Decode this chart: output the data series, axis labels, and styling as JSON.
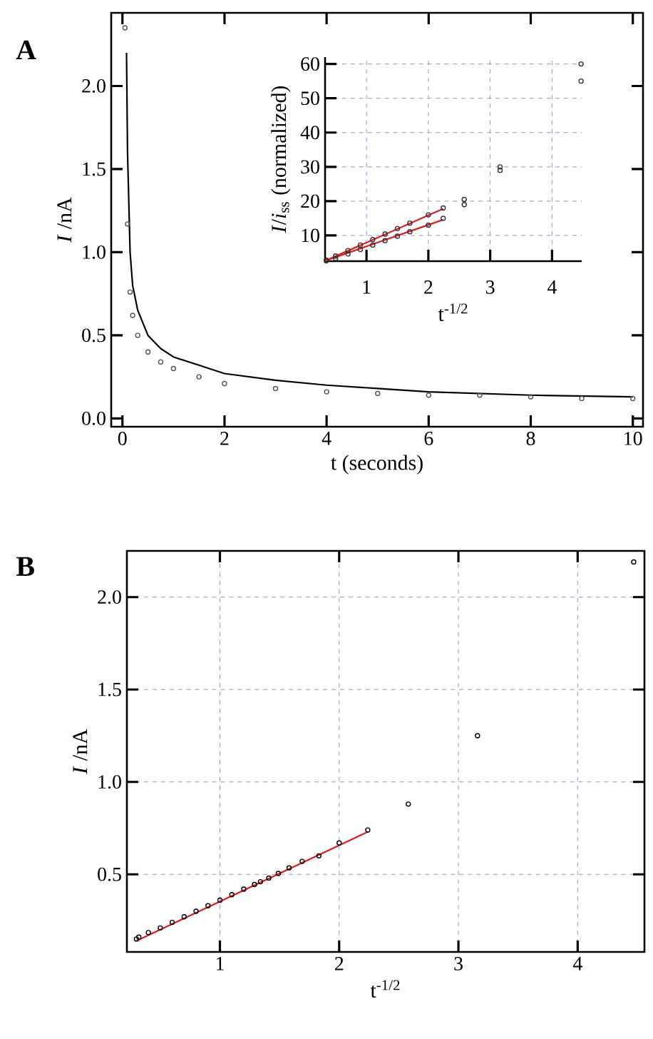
{
  "chart_data": [
    {
      "type": "scatter",
      "title": "A",
      "xlabel": "t (seconds)",
      "ylabel": "*I* /nA",
      "xlim": [
        -0.22,
        10.2
      ],
      "ylim": [
        -0.05,
        2.44
      ],
      "xticks": [
        0,
        2,
        4,
        6,
        8,
        10
      ],
      "yticks": [
        {
          "value": 0,
          "label": "0.0"
        },
        0.5,
        {
          "value": 1,
          "label": "1.0"
        },
        1.5,
        {
          "value": 2,
          "label": "2.0"
        }
      ],
      "series": [
        {
          "marker": "circle",
          "color": "#555555",
          "x": [
            0.05,
            0.1,
            0.15,
            0.2,
            0.3,
            0.5,
            0.75,
            1,
            1.5,
            2,
            3,
            4,
            5,
            6,
            7,
            8,
            9,
            10
          ],
          "values": [
            2.35,
            1.17,
            0.76,
            0.62,
            0.5,
            0.4,
            0.34,
            0.3,
            0.25,
            0.21,
            0.18,
            0.16,
            0.15,
            0.14,
            0.14,
            0.13,
            0.12,
            0.12
          ]
        },
        {
          "type": "line",
          "marker": "none",
          "color": "#000000",
          "x": [
            0.08,
            0.1,
            0.15,
            0.2,
            0.3,
            0.5,
            0.75,
            1,
            1.5,
            2,
            3,
            4,
            5,
            6,
            8,
            10
          ],
          "values": [
            2.2,
            1.6,
            1.0,
            0.8,
            0.65,
            0.5,
            0.42,
            0.37,
            0.32,
            0.27,
            0.23,
            0.2,
            0.18,
            0.16,
            0.14,
            0.13
          ]
        }
      ]
    },
    {
      "type": "scatter",
      "xlabel": "t$^{-1/2}$",
      "ylabel": "*I*/*i*$_{ss}$ (normalized)",
      "grid": true,
      "xlim": [
        0.33,
        4.48
      ],
      "ylim": [
        2.5,
        62
      ],
      "xticks": [
        1,
        2,
        3,
        4
      ],
      "yticks": [
        10,
        20,
        30,
        40,
        50,
        60
      ],
      "series": [
        {
          "marker": "circle",
          "color": "#333333",
          "x": [
            0.35,
            0.5,
            0.7,
            0.9,
            1.1,
            1.3,
            1.5,
            1.7,
            2.0,
            2.24,
            2.58,
            3.16,
            4.47
          ],
          "values": [
            2.8,
            4,
            5.6,
            7.2,
            8.8,
            10.4,
            12,
            13.6,
            16,
            18,
            20.5,
            30,
            60
          ]
        },
        {
          "marker": "circle",
          "color": "#333333",
          "x": [
            0.35,
            0.5,
            0.7,
            0.9,
            1.1,
            1.3,
            1.5,
            1.7,
            2.0,
            2.24,
            2.58,
            3.16,
            4.47
          ],
          "values": [
            2.6,
            3.3,
            4.6,
            5.9,
            7.2,
            8.5,
            9.8,
            11.1,
            13,
            15,
            19,
            29,
            55
          ]
        },
        {
          "type": "line",
          "marker": "none",
          "color": "#e41a1c",
          "x": [
            0.33,
            2.24
          ],
          "values": [
            2.6,
            17.8
          ]
        },
        {
          "type": "line",
          "marker": "none",
          "color": "#e41a1c",
          "x": [
            0.33,
            2.24
          ],
          "values": [
            2.6,
            14.6
          ]
        }
      ]
    },
    {
      "type": "scatter",
      "title": "B",
      "xlabel": "t$^{-1/2}$",
      "ylabel": "*I* /nA",
      "grid": true,
      "xlim": [
        0.22,
        4.56
      ],
      "ylim": [
        0.08,
        2.25
      ],
      "xticks": [
        1,
        2,
        3,
        4
      ],
      "yticks": [
        0.5,
        {
          "value": 1,
          "label": "1.0"
        },
        1.5,
        {
          "value": 2,
          "label": "2.0"
        }
      ],
      "series": [
        {
          "marker": "circle",
          "color": "#000000",
          "x": [
            0.3,
            0.32,
            0.4,
            0.5,
            0.6,
            0.7,
            0.8,
            0.9,
            1.0,
            1.1,
            1.2,
            1.29,
            1.34,
            1.41,
            1.49,
            1.58,
            1.69,
            1.83,
            2.0,
            2.24,
            2.58,
            3.16,
            4.47
          ],
          "values": [
            0.15,
            0.16,
            0.185,
            0.21,
            0.24,
            0.27,
            0.3,
            0.33,
            0.36,
            0.39,
            0.42,
            0.445,
            0.46,
            0.48,
            0.505,
            0.535,
            0.57,
            0.6,
            0.67,
            0.74,
            0.88,
            1.25,
            2.19
          ]
        },
        {
          "type": "line",
          "marker": "none",
          "color": "#e41a1c",
          "x": [
            0.3,
            2.24
          ],
          "values": [
            0.14,
            0.73
          ]
        }
      ]
    }
  ]
}
